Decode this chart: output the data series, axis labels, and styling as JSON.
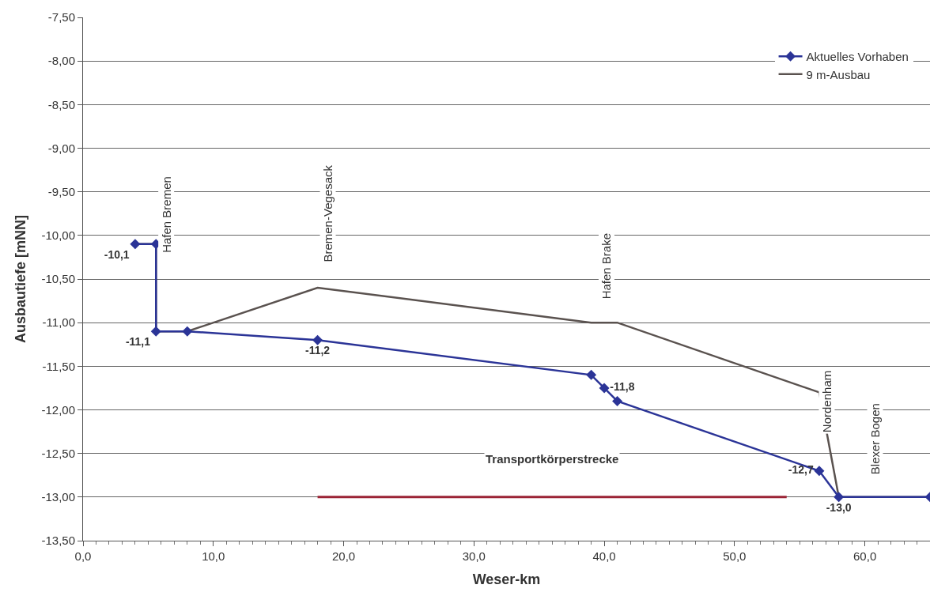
{
  "chart_data": {
    "type": "line",
    "xlabel": "Weser-km",
    "ylabel": "Ausbautiefe [mNN]",
    "xlim": [
      0,
      65
    ],
    "xticks": [
      {
        "value": 0,
        "label": "0,0"
      },
      {
        "value": 10,
        "label": "10,0"
      },
      {
        "value": 20,
        "label": "20,0"
      },
      {
        "value": 30,
        "label": "30,0"
      },
      {
        "value": 40,
        "label": "40,0"
      },
      {
        "value": 50,
        "label": "50,0"
      },
      {
        "value": 60,
        "label": "60,0"
      }
    ],
    "ylim": [
      -13.5,
      -7.5
    ],
    "yticks": [
      {
        "value": -13.5,
        "label": "-13,50"
      },
      {
        "value": -13,
        "label": "-13,00"
      },
      {
        "value": -12.5,
        "label": "-12,50"
      },
      {
        "value": -12,
        "label": "-12,00"
      },
      {
        "value": -11.5,
        "label": "-11,50"
      },
      {
        "value": -11,
        "label": "-11,00"
      },
      {
        "value": -10.5,
        "label": "-10,50"
      },
      {
        "value": -10,
        "label": "-10,00"
      },
      {
        "value": -9.5,
        "label": "-9,50"
      },
      {
        "value": -9,
        "label": "-9,00"
      },
      {
        "value": -8.5,
        "label": "-8,50"
      },
      {
        "value": -8,
        "label": "-8,00"
      },
      {
        "value": -7.5,
        "label": "-7,50"
      }
    ],
    "grid": "y",
    "legend": "top right",
    "series": [
      {
        "name": "9 m-Ausbau",
        "color": "#5a524f",
        "marker": "none",
        "x": [
          4,
          5.6,
          5.6,
          8,
          18,
          39,
          41,
          56.5,
          58,
          65
        ],
        "values": [
          -10.1,
          -10.1,
          -11.1,
          -11.1,
          -10.6,
          -11.0,
          -11.0,
          -11.8,
          -13.0,
          -13.0
        ]
      },
      {
        "name": "Aktuelles Vorhaben",
        "color": "#2b3497",
        "marker": "diamond",
        "x": [
          4,
          5.6,
          5.6,
          8,
          18,
          39,
          40,
          41,
          56.5,
          58,
          65
        ],
        "values": [
          -10.1,
          -10.1,
          -11.1,
          -11.1,
          -11.2,
          -11.6,
          -11.75,
          -11.9,
          -12.7,
          -13.0,
          -13.0
        ],
        "value_labels": [
          "-10,1",
          null,
          "-11,1",
          null,
          "-11,2",
          null,
          "-11,8",
          null,
          "-12,7",
          "-13,0",
          null
        ]
      },
      {
        "color": "#9b2335",
        "marker": "none",
        "x": [
          18,
          54
        ],
        "values": [
          -13.0,
          -13.0
        ]
      }
    ],
    "annotations": [
      "Hafen Bremen",
      "Bremen-Vegesack",
      "Hafen Brake",
      "Nordenham",
      "Blexer Bogen",
      "Transportkörperstrecke"
    ]
  }
}
